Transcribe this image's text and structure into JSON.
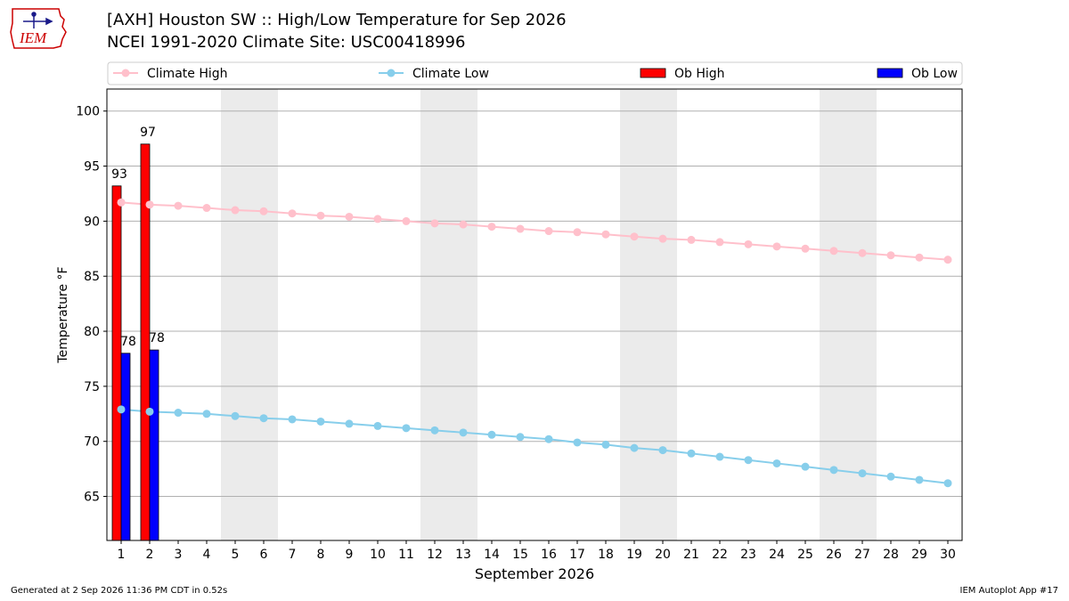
{
  "header": {
    "title_line1": "[AXH] Houston SW :: High/Low Temperature for Sep 2026",
    "title_line2": "NCEI 1991-2020 Climate Site: USC00418996"
  },
  "logo": {
    "text": "IEM",
    "color": "#cc0000"
  },
  "footer": {
    "left": "Generated at 2 Sep 2026 11:36 PM CDT in 0.52s",
    "right": "IEM Autoplot App #17"
  },
  "chart_data": {
    "type": "bar",
    "xlabel": "September 2026",
    "ylabel": "Temperature °F",
    "ylim": [
      61,
      102
    ],
    "yticks": [
      65,
      70,
      75,
      80,
      85,
      90,
      95,
      100
    ],
    "xlim": [
      0.5,
      30.5
    ],
    "days": [
      1,
      2,
      3,
      4,
      5,
      6,
      7,
      8,
      9,
      10,
      11,
      12,
      13,
      14,
      15,
      16,
      17,
      18,
      19,
      20,
      21,
      22,
      23,
      24,
      25,
      26,
      27,
      28,
      29,
      30
    ],
    "grid": "horizontal",
    "weekend_shading": [
      [
        4.5,
        6.5
      ],
      [
        11.5,
        13.5
      ],
      [
        18.5,
        20.5
      ],
      [
        25.5,
        27.5
      ]
    ],
    "legend_placement": "top",
    "climate_high": {
      "name": "Climate High",
      "color": "#ffc0cb",
      "values": [
        91.7,
        91.5,
        91.4,
        91.2,
        91.0,
        90.9,
        90.7,
        90.5,
        90.4,
        90.2,
        90.0,
        89.8,
        89.7,
        89.5,
        89.3,
        89.1,
        89.0,
        88.8,
        88.6,
        88.4,
        88.3,
        88.1,
        87.9,
        87.7,
        87.5,
        87.3,
        87.1,
        86.9,
        86.7,
        86.5
      ]
    },
    "climate_low": {
      "name": "Climate Low",
      "color": "#87ceeb",
      "values": [
        72.9,
        72.7,
        72.6,
        72.5,
        72.3,
        72.1,
        72.0,
        71.8,
        71.6,
        71.4,
        71.2,
        71.0,
        70.8,
        70.6,
        70.4,
        70.2,
        69.9,
        69.7,
        69.4,
        69.2,
        68.9,
        68.6,
        68.3,
        68.0,
        67.7,
        67.4,
        67.1,
        66.8,
        66.5,
        66.2
      ]
    },
    "ob_high": {
      "name": "Ob High",
      "color": "#ff0000",
      "days": [
        1,
        2
      ],
      "values": [
        93.2,
        97.0
      ],
      "labels": [
        "93",
        "97"
      ]
    },
    "ob_low": {
      "name": "Ob Low",
      "color": "#0000ff",
      "days": [
        1,
        2
      ],
      "values": [
        78.0,
        78.3
      ],
      "labels": [
        "78",
        "78"
      ]
    }
  }
}
